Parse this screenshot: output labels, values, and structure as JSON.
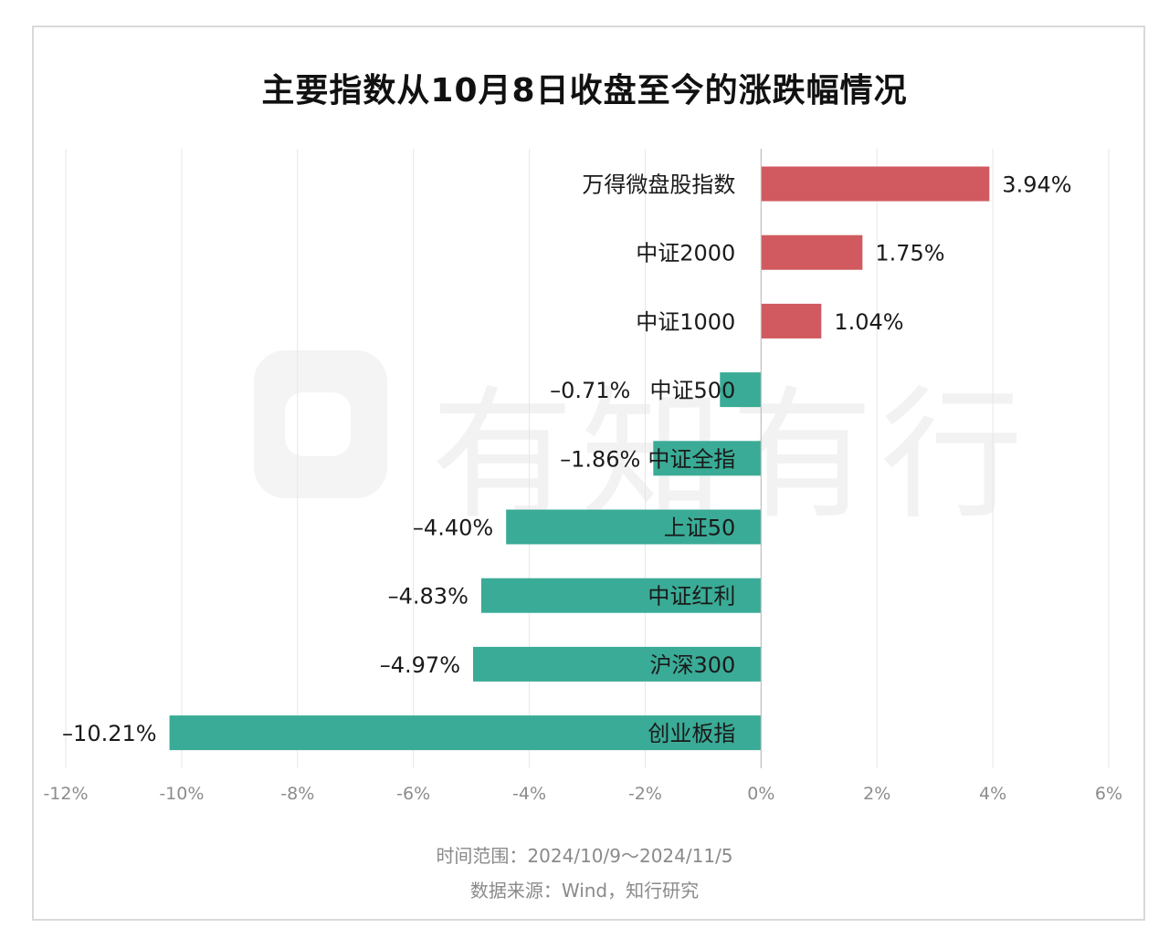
{
  "watermark": {
    "text": "有知有行"
  },
  "footer": {
    "time_range": "时间范围：2024/10/9～2024/11/5",
    "source": "数据来源：Wind，知行研究"
  },
  "colors": {
    "positive": "#d05a5f",
    "negative": "#3aab96",
    "grid": "#e6e6e6",
    "axis": "#bdbdbd",
    "tick_text": "#8c8c8c",
    "text": "#1a1a1a"
  },
  "chart_data": {
    "type": "bar",
    "orientation": "horizontal",
    "title": "主要指数从10月8日收盘至今的涨跌幅情况",
    "categories": [
      "万得微盘股指数",
      "中证2000",
      "中证1000",
      "中证500",
      "中证全指",
      "上证50",
      "中证红利",
      "沪深300",
      "创业板指"
    ],
    "values": [
      3.94,
      1.75,
      1.04,
      -0.71,
      -1.86,
      -4.4,
      -4.83,
      -4.97,
      -10.21
    ],
    "value_labels": [
      "3.94%",
      "1.75%",
      "1.04%",
      "–0.71%",
      "–1.86%",
      "–4.40%",
      "–4.83%",
      "–4.97%",
      "–10.21%"
    ],
    "xlim": [
      -12,
      6
    ],
    "xticks": [
      -12,
      -10,
      -8,
      -6,
      -4,
      -2,
      0,
      2,
      4,
      6
    ],
    "xtick_labels": [
      "-12%",
      "-10%",
      "-8%",
      "-6%",
      "-4%",
      "-2%",
      "0%",
      "2%",
      "4%",
      "6%"
    ],
    "xlabel": "",
    "ylabel": "",
    "grid": "vertical",
    "legend": "none"
  }
}
